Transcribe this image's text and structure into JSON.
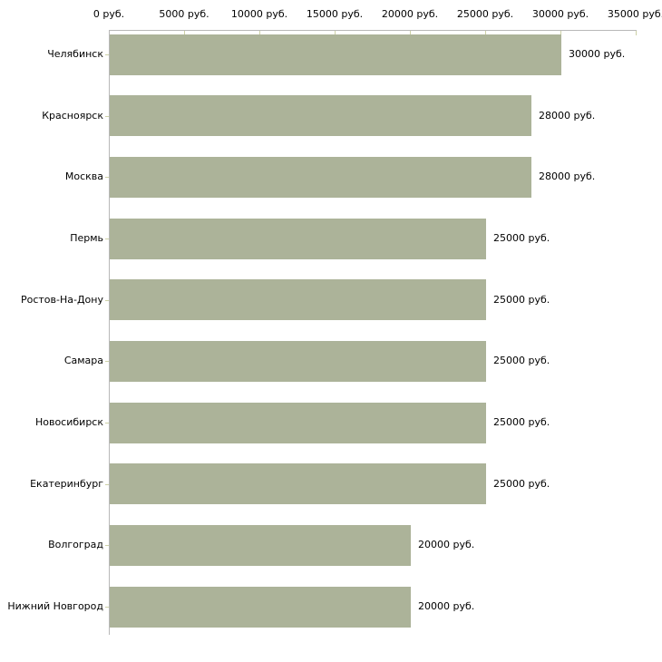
{
  "chart_data": {
    "type": "bar",
    "orientation": "horizontal",
    "title": "",
    "xlabel": "",
    "ylabel": "",
    "categories": [
      "Челябинск",
      "Красноярск",
      "Москва",
      "Пермь",
      "Ростов-На-Дону",
      "Самара",
      "Новосибирск",
      "Екатеринбург",
      "Волгоград",
      "Нижний Новгород"
    ],
    "values": [
      30000,
      28000,
      28000,
      25000,
      25000,
      25000,
      25000,
      25000,
      20000,
      20000
    ],
    "value_labels": [
      "30000 руб.",
      "28000 руб.",
      "28000 руб.",
      "25000 руб.",
      "25000 руб.",
      "25000 руб.",
      "25000 руб.",
      "25000 руб.",
      "20000 руб.",
      "20000 руб."
    ],
    "unit": "руб.",
    "xlim": [
      0,
      35000
    ],
    "x_tick_values": [
      0,
      5000,
      10000,
      15000,
      20000,
      25000,
      30000,
      35000
    ],
    "x_tick_labels": [
      "0 руб.",
      "5000 руб.",
      "10000 руб.",
      "15000 руб.",
      "20000 руб.",
      "25000 руб.",
      "30000 руб.",
      "35000 руб."
    ],
    "grid": false,
    "legend": null,
    "colors": {
      "bar": "#acb399",
      "axis_line": "#b8b8b8",
      "tick": "#cdd1a6",
      "text": "#000000",
      "background": "#ffffff"
    }
  }
}
